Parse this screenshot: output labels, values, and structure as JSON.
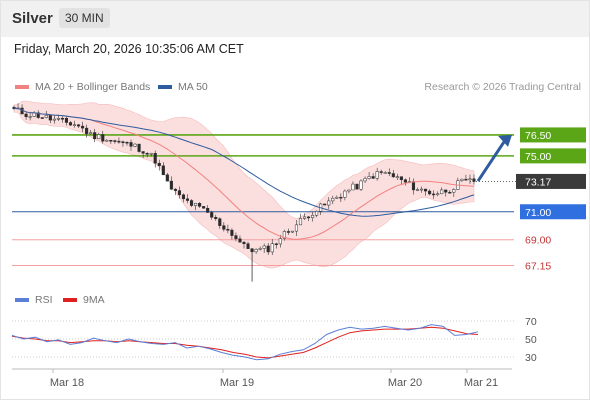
{
  "header": {
    "asset": "Silver",
    "timeframe": "30 MIN"
  },
  "datetime": "Friday, March 20, 2026 10:35:06 AM CET",
  "legend": {
    "items": [
      {
        "label": "MA 20 + Bollinger Bands",
        "color": "#f2827f"
      },
      {
        "label": "MA 50",
        "color": "#2e5c9e"
      }
    ],
    "copyright": "Research © 2026 Trading Central"
  },
  "rsi_legend": {
    "items": [
      {
        "label": "RSI",
        "color": "#5b7fd6"
      },
      {
        "label": "9MA",
        "color": "#e02020"
      }
    ]
  },
  "chart_data": [
    {
      "type": "candlestick",
      "x_labels": [
        "Mar 18",
        "Mar 19",
        "Mar 20",
        "Mar 21"
      ],
      "y_range": [
        65.9,
        79.0
      ],
      "levels": [
        {
          "value": 76.5,
          "label": "76.50",
          "kind": "resistance"
        },
        {
          "value": 75.0,
          "label": "75.00",
          "kind": "resistance"
        },
        {
          "value": 73.17,
          "label": "73.17",
          "kind": "last"
        },
        {
          "value": 71.0,
          "label": "71.00",
          "kind": "pivot"
        },
        {
          "value": 69.0,
          "label": "69.00",
          "kind": "support"
        },
        {
          "value": 67.15,
          "label": "67.15",
          "kind": "support"
        }
      ],
      "price_path": [
        78.3,
        78.0,
        77.9,
        77.6,
        77.4,
        77.2,
        76.5,
        76.3,
        76.0,
        75.8,
        75.5,
        74.8,
        73.0,
        72.0,
        71.5,
        71.0,
        70.2,
        69.5,
        68.5,
        68.2,
        68.4,
        69.3,
        70.0,
        70.8,
        71.3,
        71.9,
        72.5,
        72.9,
        73.6,
        73.8,
        73.4,
        72.9,
        72.5,
        72.3,
        72.6,
        73.1,
        73.2
      ],
      "target_path": [
        [
          73.2
        ],
        [
          76.5
        ]
      ],
      "colors": {
        "up": "#2e9e2e",
        "down": "#c43636",
        "resistance": "#5ba617",
        "pivot": "#2e5c9e",
        "support": "#f4a0a0"
      }
    },
    {
      "type": "line",
      "name": "RSI",
      "y_range": [
        20,
        80
      ],
      "y_ticks": [
        70,
        50,
        30
      ],
      "rsi": [
        54,
        50,
        52,
        47,
        49,
        44,
        46,
        51,
        48,
        46,
        50,
        47,
        45,
        44,
        46,
        40,
        42,
        39,
        35,
        32,
        30,
        27,
        28,
        33,
        36,
        38,
        45,
        55,
        60,
        63,
        61,
        62,
        64,
        62,
        60,
        62,
        66,
        64,
        54,
        55,
        58
      ],
      "ma9": [
        53,
        51,
        50,
        48,
        48,
        46,
        47,
        48,
        48,
        47,
        48,
        47,
        46,
        45,
        45,
        43,
        42,
        40,
        38,
        35,
        33,
        30,
        29,
        31,
        33,
        35,
        40,
        46,
        52,
        57,
        59,
        60,
        61,
        61,
        61,
        62,
        63,
        62,
        59,
        56,
        55
      ]
    }
  ]
}
